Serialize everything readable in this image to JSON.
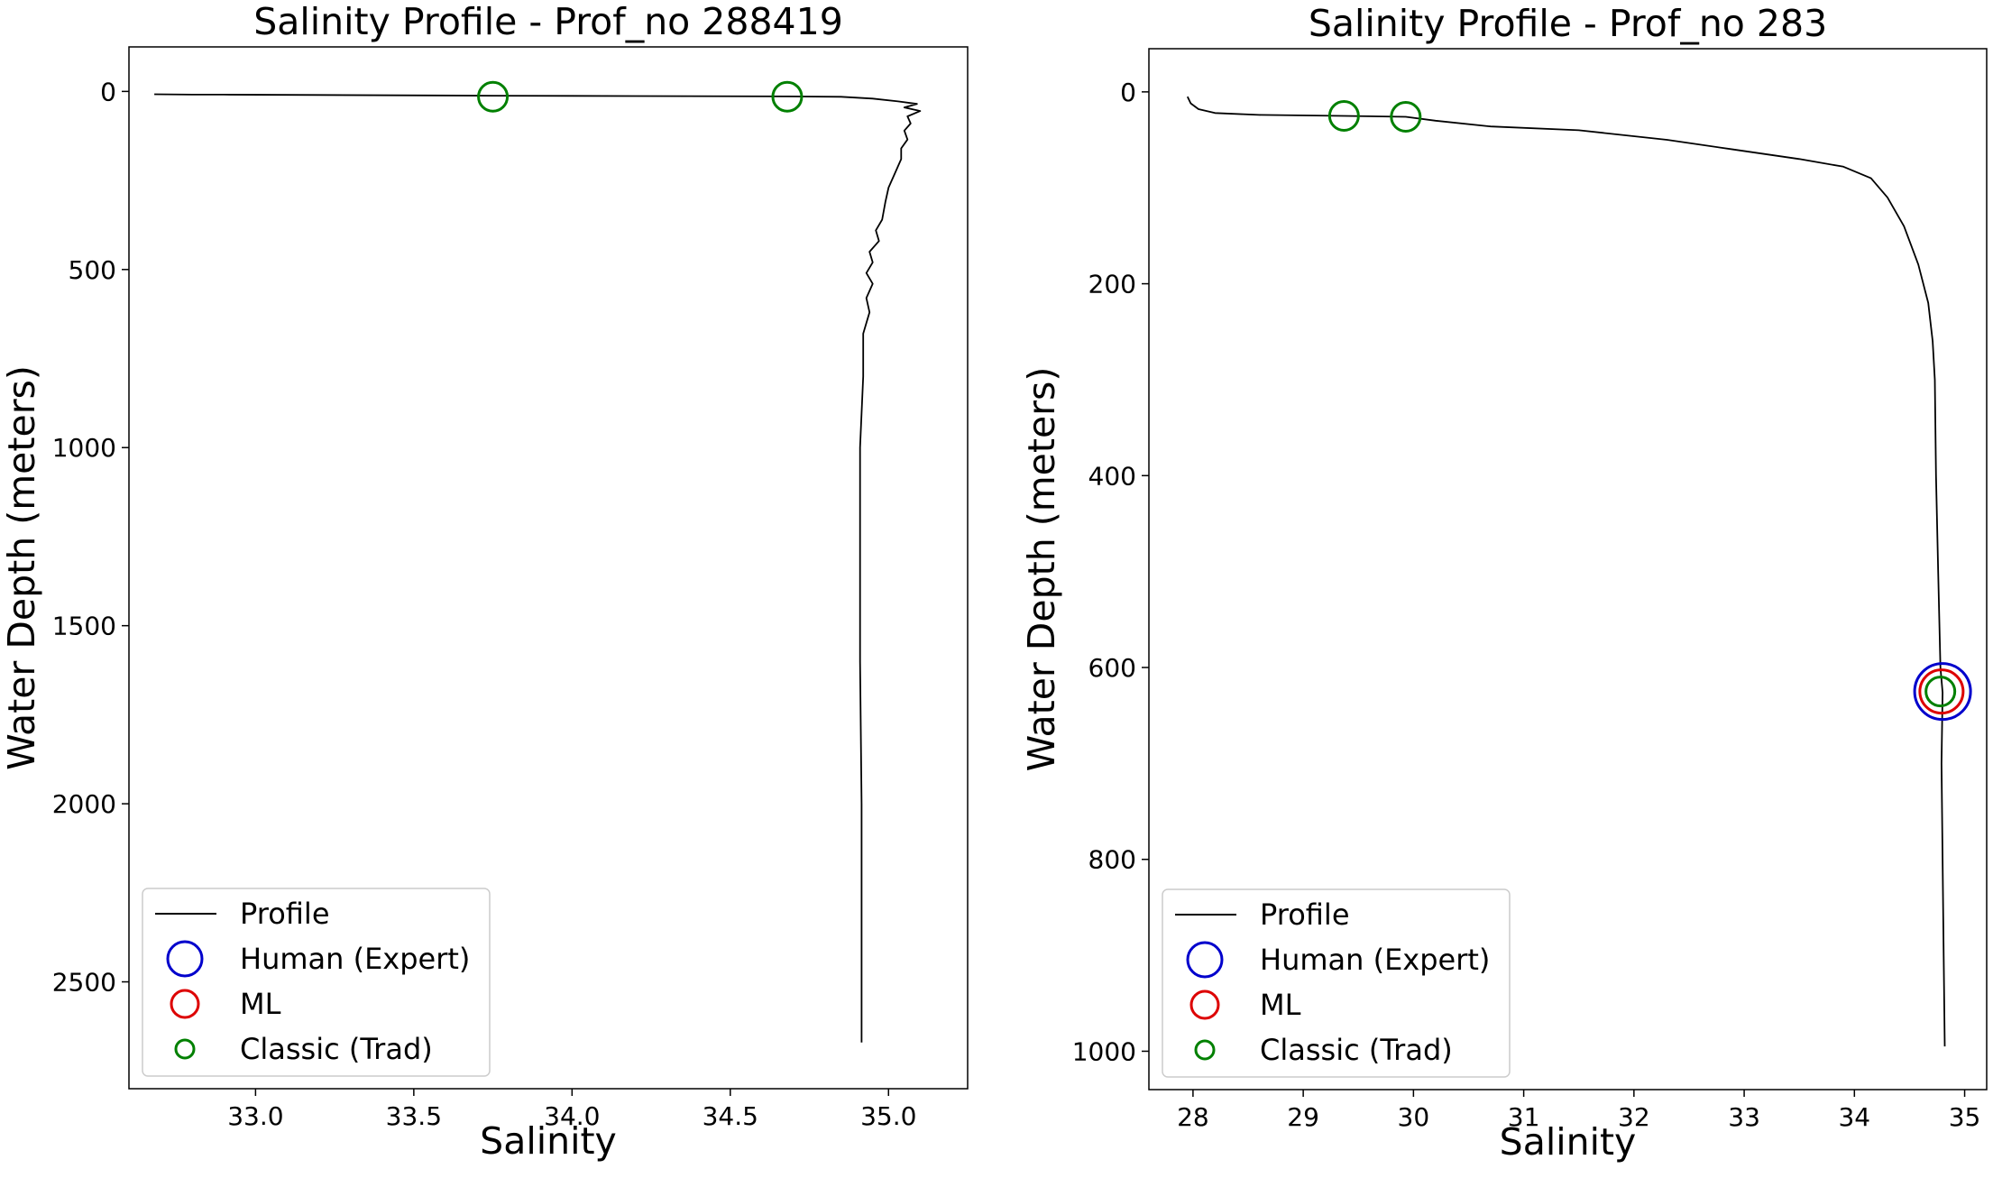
{
  "chart_data": [
    {
      "type": "line",
      "title": "Salinity Profile - Prof_no 288419",
      "xlabel": "Salinity",
      "ylabel": "Water Depth (meters)",
      "xlim": [
        32.6,
        35.25
      ],
      "ylim": [
        2800,
        -125
      ],
      "y_inverted": true,
      "xticks": [
        33.0,
        33.5,
        34.0,
        34.5,
        35.0
      ],
      "xtick_labels": [
        "33.0",
        "33.5",
        "34.0",
        "34.5",
        "35.0"
      ],
      "yticks": [
        0,
        500,
        1000,
        1500,
        2000,
        2500
      ],
      "ytick_labels": [
        "0",
        "500",
        "1000",
        "1500",
        "2000",
        "2500"
      ],
      "grid": false,
      "legend_position": "lower-left",
      "legend": [
        {
          "label": "Profile",
          "kind": "line",
          "color": "#000000"
        },
        {
          "label": "Human (Expert)",
          "kind": "circle",
          "color": "#0000cc"
        },
        {
          "label": "ML",
          "kind": "circle",
          "color": "#dd0000"
        },
        {
          "label": "Classic (Trad)",
          "kind": "circle-small",
          "color": "#008000"
        }
      ],
      "series": [
        {
          "name": "Profile",
          "color": "#000000",
          "points": [
            [
              32.68,
              8
            ],
            [
              32.8,
              9
            ],
            [
              32.9,
              9
            ],
            [
              33.2,
              10
            ],
            [
              33.75,
              12
            ],
            [
              34.2,
              13
            ],
            [
              34.68,
              14
            ],
            [
              34.85,
              15
            ],
            [
              34.95,
              20
            ],
            [
              35.03,
              28
            ],
            [
              35.09,
              35
            ],
            [
              35.05,
              45
            ],
            [
              35.1,
              55
            ],
            [
              35.06,
              70
            ],
            [
              35.07,
              90
            ],
            [
              35.05,
              110
            ],
            [
              35.06,
              135
            ],
            [
              35.04,
              160
            ],
            [
              35.04,
              190
            ],
            [
              35.02,
              230
            ],
            [
              35.0,
              270
            ],
            [
              34.99,
              310
            ],
            [
              34.98,
              360
            ],
            [
              34.96,
              390
            ],
            [
              34.97,
              420
            ],
            [
              34.94,
              450
            ],
            [
              34.95,
              480
            ],
            [
              34.93,
              510
            ],
            [
              34.95,
              540
            ],
            [
              34.93,
              580
            ],
            [
              34.94,
              620
            ],
            [
              34.92,
              680
            ],
            [
              34.92,
              800
            ],
            [
              34.91,
              1000
            ],
            [
              34.91,
              1300
            ],
            [
              34.91,
              1600
            ],
            [
              34.915,
              2000
            ],
            [
              34.915,
              2400
            ],
            [
              34.915,
              2670
            ]
          ]
        }
      ],
      "markers": [
        {
          "label": "Classic (Trad)",
          "x": 33.75,
          "y": 15,
          "color": "#008000"
        },
        {
          "label": "Classic (Trad)",
          "x": 34.68,
          "y": 15,
          "color": "#008000"
        }
      ]
    },
    {
      "type": "line",
      "title": "Salinity Profile - Prof_no 283",
      "xlabel": "Salinity",
      "ylabel": "Water Depth (meters)",
      "xlim": [
        27.6,
        35.2
      ],
      "ylim": [
        1040,
        -45
      ],
      "y_inverted": true,
      "xticks": [
        28,
        29,
        30,
        31,
        32,
        33,
        34,
        35
      ],
      "xtick_labels": [
        "28",
        "29",
        "30",
        "31",
        "32",
        "33",
        "34",
        "35"
      ],
      "yticks": [
        0,
        200,
        400,
        600,
        800,
        1000
      ],
      "ytick_labels": [
        "0",
        "200",
        "400",
        "600",
        "800",
        "1000"
      ],
      "grid": false,
      "legend_position": "lower-left",
      "legend": [
        {
          "label": "Profile",
          "kind": "line",
          "color": "#000000"
        },
        {
          "label": "Human (Expert)",
          "kind": "circle",
          "color": "#0000cc"
        },
        {
          "label": "ML",
          "kind": "circle",
          "color": "#dd0000"
        },
        {
          "label": "Classic (Trad)",
          "kind": "circle-small",
          "color": "#008000"
        }
      ],
      "series": [
        {
          "name": "Profile",
          "color": "#000000",
          "points": [
            [
              27.95,
              5
            ],
            [
              27.98,
              12
            ],
            [
              28.05,
              18
            ],
            [
              28.2,
              22
            ],
            [
              28.6,
              24
            ],
            [
              29.37,
              25
            ],
            [
              29.93,
              26
            ],
            [
              30.2,
              30
            ],
            [
              30.7,
              36
            ],
            [
              31.5,
              40
            ],
            [
              32.3,
              50
            ],
            [
              32.9,
              60
            ],
            [
              33.5,
              70
            ],
            [
              33.9,
              78
            ],
            [
              34.15,
              90
            ],
            [
              34.3,
              110
            ],
            [
              34.45,
              140
            ],
            [
              34.58,
              180
            ],
            [
              34.67,
              220
            ],
            [
              34.71,
              260
            ],
            [
              34.73,
              300
            ],
            [
              34.74,
              400
            ],
            [
              34.76,
              500
            ],
            [
              34.78,
              600
            ],
            [
              34.8,
              626
            ],
            [
              34.79,
              700
            ],
            [
              34.8,
              800
            ],
            [
              34.81,
              900
            ],
            [
              34.82,
              995
            ]
          ]
        }
      ],
      "markers": [
        {
          "label": "Human (Expert)",
          "x": 34.8,
          "y": 625,
          "color": "#0000cc"
        },
        {
          "label": "ML",
          "x": 34.79,
          "y": 625,
          "color": "#dd0000"
        },
        {
          "label": "Classic (Trad)",
          "x": 34.78,
          "y": 625,
          "color": "#008000"
        },
        {
          "label": "Classic (Trad)",
          "x": 29.37,
          "y": 25,
          "color": "#008000"
        },
        {
          "label": "Classic (Trad)",
          "x": 29.93,
          "y": 26,
          "color": "#008000"
        }
      ]
    }
  ]
}
